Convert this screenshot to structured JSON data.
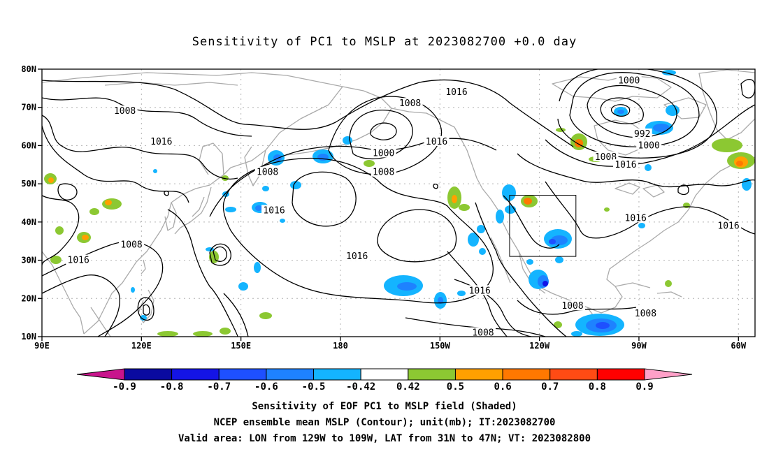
{
  "title": "Sensitivity of PC1 to MSLP at 2023082700 +0.0 day",
  "map": {
    "lon_range": [
      90,
      305
    ],
    "lat_range": [
      10,
      80
    ],
    "lat_ticks": [
      {
        "value": 80,
        "label": "80N"
      },
      {
        "value": 70,
        "label": "70N"
      },
      {
        "value": 60,
        "label": "60N"
      },
      {
        "value": 50,
        "label": "50N"
      },
      {
        "value": 40,
        "label": "40N"
      },
      {
        "value": 30,
        "label": "30N"
      },
      {
        "value": 20,
        "label": "20N"
      },
      {
        "value": 10,
        "label": "10N"
      }
    ],
    "lon_ticks": [
      {
        "value": 90,
        "label": "90E"
      },
      {
        "value": 120,
        "label": "120E"
      },
      {
        "value": 150,
        "label": "150E"
      },
      {
        "value": 180,
        "label": "180"
      },
      {
        "value": 210,
        "label": "150W"
      },
      {
        "value": 240,
        "label": "120W"
      },
      {
        "value": 270,
        "label": "90W"
      },
      {
        "value": 300,
        "label": "60W"
      }
    ],
    "valid_box": {
      "lon": [
        231,
        251
      ],
      "lat": [
        31,
        47
      ]
    },
    "contour_labels": [
      {
        "text": "1016",
        "lon": 215,
        "lat": 74
      },
      {
        "text": "1008",
        "lon": 201,
        "lat": 71
      },
      {
        "text": "1000",
        "lon": 267,
        "lat": 77
      },
      {
        "text": "1008",
        "lon": 115,
        "lat": 69
      },
      {
        "text": "1016",
        "lon": 126,
        "lat": 61
      },
      {
        "text": "1016",
        "lon": 209,
        "lat": 61
      },
      {
        "text": "1000",
        "lon": 193,
        "lat": 58
      },
      {
        "text": "992",
        "lon": 271,
        "lat": 63
      },
      {
        "text": "1000",
        "lon": 273,
        "lat": 60
      },
      {
        "text": "1008",
        "lon": 260,
        "lat": 57
      },
      {
        "text": "1016",
        "lon": 266,
        "lat": 55
      },
      {
        "text": "1008",
        "lon": 158,
        "lat": 53
      },
      {
        "text": "1008",
        "lon": 193,
        "lat": 53
      },
      {
        "text": "1016",
        "lon": 160,
        "lat": 43
      },
      {
        "text": "1016",
        "lon": 269,
        "lat": 41
      },
      {
        "text": "1016",
        "lon": 297,
        "lat": 39
      },
      {
        "text": "1008",
        "lon": 117,
        "lat": 34
      },
      {
        "text": "1016",
        "lon": 101,
        "lat": 30
      },
      {
        "text": "1016",
        "lon": 185,
        "lat": 31
      },
      {
        "text": "1016",
        "lon": 222,
        "lat": 22
      },
      {
        "text": "1008",
        "lon": 250,
        "lat": 18
      },
      {
        "text": "1008",
        "lon": 272,
        "lat": 16
      },
      {
        "text": "1008",
        "lon": 223,
        "lat": 11
      }
    ]
  },
  "colorbar": {
    "labels": [
      "-0.9",
      "-0.8",
      "-0.7",
      "-0.6",
      "-0.5",
      "-0.42",
      "0.42",
      "0.5",
      "0.6",
      "0.7",
      "0.8",
      "0.9"
    ],
    "colors": [
      "#0a0aa0",
      "#1414e6",
      "#1e50ff",
      "#1e82ff",
      "#14b4ff",
      "#ffffff",
      "#8cc832",
      "#ffa000",
      "#ff7800",
      "#ff4b14",
      "#ff0000"
    ],
    "low_end_color": "#c8148c",
    "high_end_color": "#ffa0c8"
  },
  "captions": [
    "Sensitivity of EOF PC1 to MSLP field (Shaded)",
    "NCEP ensemble mean MSLP (Contour); unit(mb); IT:2023082700",
    "Valid area: LON from 129W to 109W, LAT from 31N to 47N; VT: 2023082800"
  ]
}
